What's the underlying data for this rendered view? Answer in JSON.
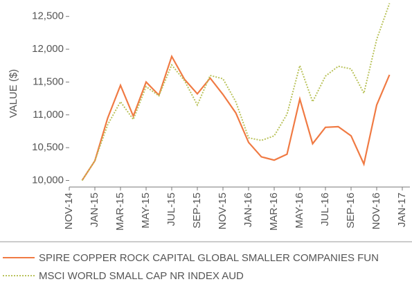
{
  "chart_data": {
    "type": "line",
    "y_label": "VALUE ($)",
    "categories": [
      "NOV-14",
      null,
      "JAN-15",
      null,
      "MAR-15",
      null,
      "MAY-15",
      null,
      "JUL-15",
      null,
      "SEP-15",
      null,
      "NOV-15",
      null,
      "JAN-16",
      null,
      "MAR-16",
      null,
      "MAY-16",
      null,
      "JUL-16",
      null,
      "SEP-16",
      null,
      "NOV-16",
      null,
      "JAN-17"
    ],
    "series": [
      {
        "name": "SPIRE COPPER ROCK CAPITAL GLOBAL SMALLER COMPANIES FUN",
        "color": "#f07a43",
        "style": "solid",
        "values": [
          null,
          10000,
          10300,
          10950,
          11450,
          10980,
          11500,
          11300,
          11890,
          11540,
          11320,
          11560,
          11310,
          11030,
          10580,
          10360,
          10310,
          10400,
          11240,
          10560,
          10810,
          10820,
          10680,
          10250,
          11150,
          11610,
          null
        ]
      },
      {
        "name": "MSCI WORLD SMALL CAP NR INDEX AUD",
        "color": "#b9c25a",
        "style": "dotted",
        "values": [
          null,
          10000,
          10300,
          10850,
          11200,
          10930,
          11430,
          11290,
          11760,
          11520,
          11150,
          11600,
          11550,
          11200,
          10650,
          10610,
          10680,
          11010,
          11750,
          11200,
          11590,
          11740,
          11700,
          11330,
          12150,
          12700,
          null
        ]
      }
    ],
    "ylim": [
      9900,
      12750
    ],
    "yticks": [
      {
        "value": 10000,
        "label": "10,000"
      },
      {
        "value": 10500,
        "label": "10,500"
      },
      {
        "value": 11000,
        "label": "11,000"
      },
      {
        "value": 11500,
        "label": "11,500"
      },
      {
        "value": 12000,
        "label": "12,000"
      },
      {
        "value": 12500,
        "label": "12,500"
      }
    ]
  }
}
